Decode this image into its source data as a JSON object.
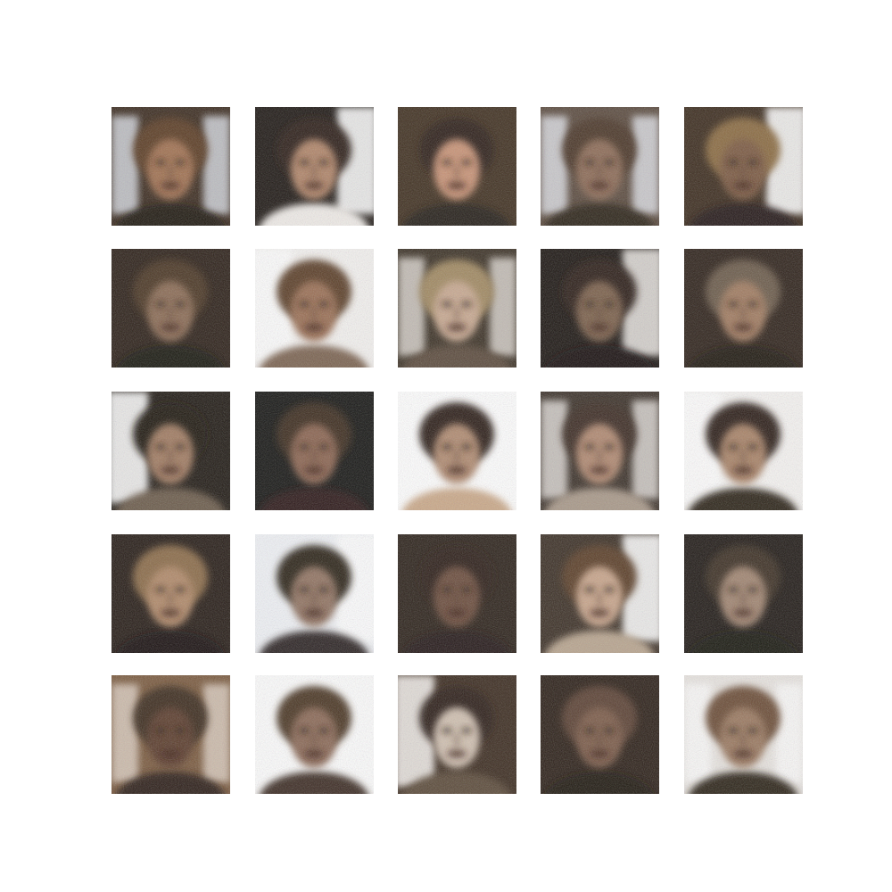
{
  "figure": {
    "rows": 5,
    "cols": 5,
    "tiles": [
      {
        "bg": "#3a2a1e",
        "hair": "#5a3a22",
        "skin": "#a07050",
        "shirt": "#1a1410",
        "light": "#e8eef8",
        "tone": "light-sides"
      },
      {
        "bg": "#1c1612",
        "hair": "#2a1c14",
        "skin": "#b08468",
        "shirt": "#f0ece8",
        "light": "#ffffff",
        "tone": "light-right"
      },
      {
        "bg": "#3e2e1e",
        "hair": "#2a1e14",
        "skin": "#c89274",
        "shirt": "#201a16",
        "light": "#6a5440",
        "tone": "dark"
      },
      {
        "bg": "#5a4a3e",
        "hair": "#4a3626",
        "skin": "#8c6a54",
        "shirt": "#2a2018",
        "light": "#eef2fa",
        "tone": "light-sides"
      },
      {
        "bg": "#3a2a1c",
        "hair": "#8a6a40",
        "skin": "#7a5840",
        "shirt": "#201812",
        "light": "#ffffff",
        "tone": "light-right"
      },
      {
        "bg": "#2a1e16",
        "hair": "#4a3422",
        "skin": "#8a6a52",
        "shirt": "#18120e",
        "light": "#8a7460",
        "tone": "dark"
      },
      {
        "bg": "#f4f2f0",
        "hair": "#5a3c26",
        "skin": "#9a6e52",
        "shirt": "#7a6250",
        "light": "#ffffff",
        "tone": "light-left"
      },
      {
        "bg": "#3a3024",
        "hair": "#a08860",
        "skin": "#c8a890",
        "shirt": "#5a4a3a",
        "light": "#f0eae4",
        "tone": "light-sides"
      },
      {
        "bg": "#1a1410",
        "hair": "#2a1e16",
        "skin": "#7a5e4a",
        "shirt": "#14100c",
        "light": "#e8e4e0",
        "tone": "light-right"
      },
      {
        "bg": "#2c2018",
        "hair": "#6a5a4a",
        "skin": "#a07a5e",
        "shirt": "#1a1410",
        "light": "#9a8a7a",
        "tone": "dark"
      },
      {
        "bg": "#1e1812",
        "hair": "#1e1610",
        "skin": "#a07a60",
        "shirt": "#6a5a4a",
        "light": "#ffffff",
        "tone": "light-left"
      },
      {
        "bg": "#141412",
        "hair": "#3a2a1e",
        "skin": "#8a6450",
        "shirt": "#2a1612",
        "light": "#4a3a2e",
        "tone": "dark"
      },
      {
        "bg": "#ffffff",
        "hair": "#2a1e16",
        "skin": "#b08a70",
        "shirt": "#caa888",
        "light": "#ffffff",
        "tone": "white"
      },
      {
        "bg": "#3a3028",
        "hair": "#3a2c20",
        "skin": "#b08870",
        "shirt": "#a89888",
        "light": "#f4f0ec",
        "tone": "light-sides"
      },
      {
        "bg": "#f6f4f2",
        "hair": "#2a1e16",
        "skin": "#a88266",
        "shirt": "#2a2018",
        "light": "#ffffff",
        "tone": "light-left"
      },
      {
        "bg": "#241a14",
        "hair": "#8a6a46",
        "skin": "#b08868",
        "shirt": "#14100c",
        "light": "#5a4634",
        "tone": "dark"
      },
      {
        "bg": "#f0f2f6",
        "hair": "#2a2018",
        "skin": "#907260",
        "shirt": "#2a2420",
        "light": "#ffffff",
        "tone": "light-right"
      },
      {
        "bg": "#2a2018",
        "hair": "#2a1e16",
        "skin": "#6a4c3a",
        "shirt": "#201812",
        "light": "#7a6a5a",
        "tone": "dark"
      },
      {
        "bg": "#3a2e24",
        "hair": "#5a3e28",
        "skin": "#c8a48a",
        "shirt": "#b8a48e",
        "light": "#ffffff",
        "tone": "light-right"
      },
      {
        "bg": "#1e1814",
        "hair": "#3a2e24",
        "skin": "#a08470",
        "shirt": "#181410",
        "light": "#e0dcd8",
        "tone": "dark"
      },
      {
        "bg": "#7a5a3e",
        "hair": "#3a2a1e",
        "skin": "#5a3a2a",
        "shirt": "#2a1e16",
        "light": "#e8dcd0",
        "tone": "light-sides"
      },
      {
        "bg": "#f2f0ee",
        "hair": "#4a3424",
        "skin": "#8a6854",
        "shirt": "#3a2a20",
        "light": "#ffffff",
        "tone": "white"
      },
      {
        "bg": "#3a2a1e",
        "hair": "#2a1c14",
        "skin": "#d0c0b0",
        "shirt": "#5a4838",
        "light": "#f4f0ec",
        "tone": "light-left"
      },
      {
        "bg": "#2a1e16",
        "hair": "#5a4030",
        "skin": "#7a5a46",
        "shirt": "#1a1410",
        "light": "#8a6e5a",
        "tone": "dark"
      },
      {
        "bg": "#e8e4e0",
        "hair": "#6a4c34",
        "skin": "#9a785e",
        "shirt": "#2a2018",
        "light": "#ffffff",
        "tone": "light-sides"
      }
    ]
  }
}
